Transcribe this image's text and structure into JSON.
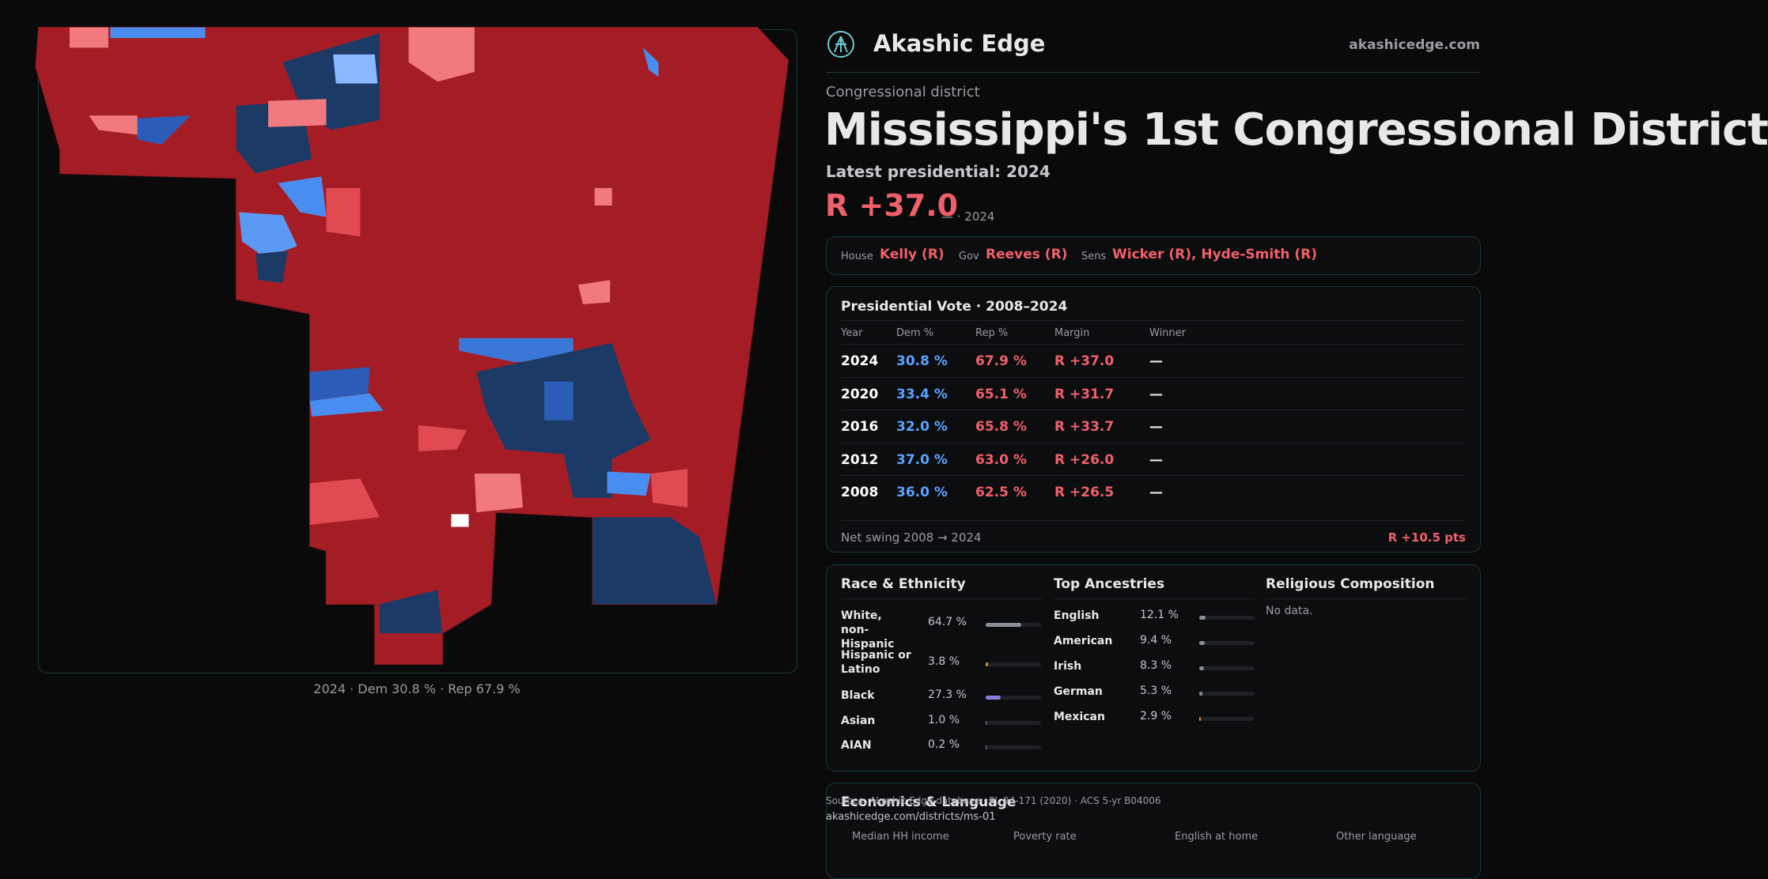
{
  "brand": {
    "name": "Akashic Edge",
    "url": "akashicedge.com"
  },
  "header": {
    "kicker": "Congressional district",
    "title": "Mississippi's 1st Congressional District",
    "latest": "Latest presidential: 2024",
    "margin": "R +37.0",
    "margin_note": "— · 2024"
  },
  "officials": [
    {
      "role": "House",
      "name": "Kelly (R)"
    },
    {
      "role": "Gov",
      "name": "Reeves (R)"
    },
    {
      "role": "Sens",
      "name": "Wicker (R), Hyde-Smith (R)"
    }
  ],
  "presidential": {
    "title": "Presidential Vote · 2008–2024",
    "columns": [
      "Year",
      "Dem %",
      "Rep %",
      "Margin",
      "Winner"
    ],
    "rows": [
      [
        "2024",
        "30.8 %",
        "67.9 %",
        "R +37.0",
        "—"
      ],
      [
        "2020",
        "33.4 %",
        "65.1 %",
        "R +31.7",
        "—"
      ],
      [
        "2016",
        "32.0 %",
        "65.8 %",
        "R +33.7",
        "—"
      ],
      [
        "2012",
        "37.0 %",
        "63.0 %",
        "R +26.0",
        "—"
      ],
      [
        "2008",
        "36.0 %",
        "62.5 %",
        "R +26.5",
        "—"
      ]
    ],
    "swing_label": "Net swing 2008 → 2024",
    "swing_value": "R +10.5 pts"
  },
  "race": {
    "title": "Race & Ethnicity",
    "rows": [
      {
        "label": "White, non-Hispanic",
        "value": 64.7,
        "value_label": "64.7 %",
        "color": "#8a8f9c"
      },
      {
        "label": "Hispanic or Latino",
        "value": 3.8,
        "value_label": "3.8 %",
        "color": "#e08a2c"
      },
      {
        "label": "Black",
        "value": 27.3,
        "value_label": "27.3 %",
        "color": "#8b7fe0"
      },
      {
        "label": "Asian",
        "value": 1.0,
        "value_label": "1.0 %",
        "color": "#8a8f9c"
      },
      {
        "label": "AIAN",
        "value": 0.2,
        "value_label": "0.2 %",
        "color": "#8a8f9c"
      }
    ]
  },
  "ancestry": {
    "title": "Top Ancestries",
    "rows": [
      {
        "label": "English",
        "value": 12.1,
        "value_label": "12.1 %",
        "color": "#8a8f9c"
      },
      {
        "label": "American",
        "value": 9.4,
        "value_label": "9.4 %",
        "color": "#8a8f9c"
      },
      {
        "label": "Irish",
        "value": 8.3,
        "value_label": "8.3 %",
        "color": "#8a8f9c"
      },
      {
        "label": "German",
        "value": 5.3,
        "value_label": "5.3 %",
        "color": "#8a8f9c"
      },
      {
        "label": "Mexican",
        "value": 2.9,
        "value_label": "2.9 %",
        "color": "#e08a2c"
      }
    ]
  },
  "religion": {
    "title": "Religious Composition",
    "note": "No data."
  },
  "economics": {
    "title": "Economics & Language",
    "columns": [
      "Median HH income",
      "Poverty rate",
      "English at home",
      "Other language"
    ]
  },
  "map": {
    "caption": "2024 · Dem 30.8 % · Rep 67.9 %"
  },
  "footer": {
    "source": "Sources: Akashic Edge database · PL 94-171 (2020) · ACS 5-yr B04006",
    "url": "akashicedge.com/districts/ms-01"
  }
}
